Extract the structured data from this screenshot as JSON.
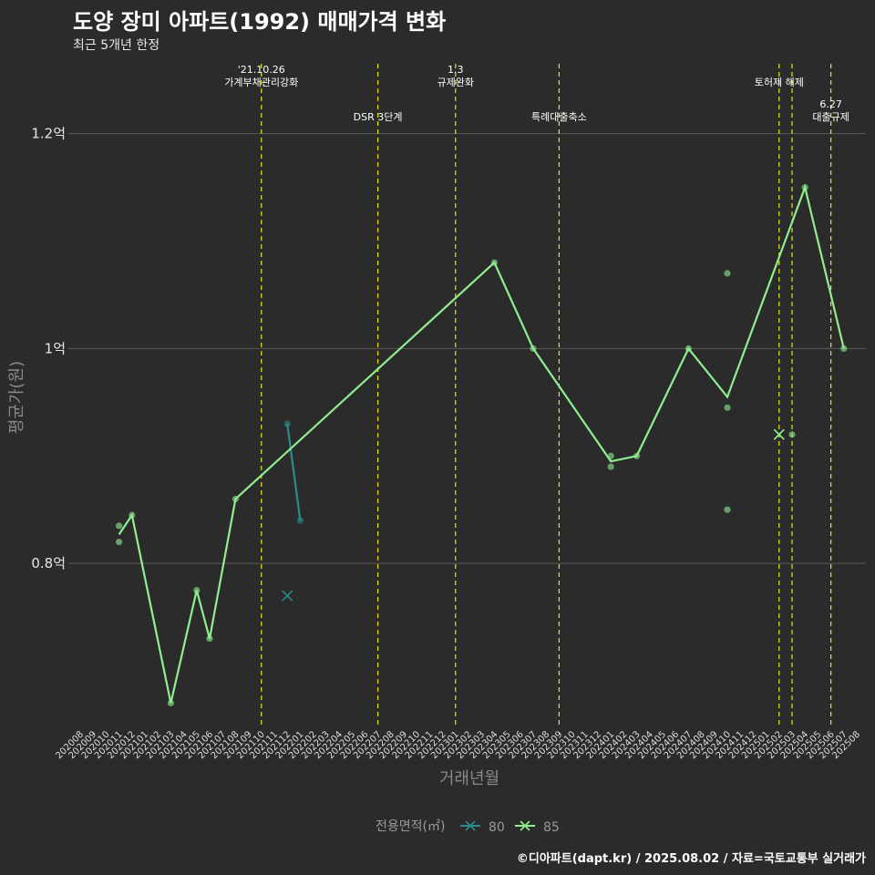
{
  "header": {
    "title": "도양 장미 아파트(1992) 매매가격 변화",
    "subtitle": "최근 5개년 한정"
  },
  "caption": "©디아파트(dapt.kr) / 2025.08.02 / 자료=국토교통부 실거래가",
  "colors": {
    "s80": "#2a8c8c",
    "s85": "#90ee90",
    "policy": "#e6e619",
    "background": "#2b2b2b"
  },
  "chart_data": {
    "type": "line",
    "xlabel": "거래년월",
    "ylabel": "평균가(원)",
    "x_categories": [
      "202008",
      "202009",
      "202010",
      "202011",
      "202012",
      "202101",
      "202102",
      "202103",
      "202104",
      "202105",
      "202106",
      "202107",
      "202108",
      "202109",
      "202110",
      "202111",
      "202112",
      "202201",
      "202202",
      "202203",
      "202204",
      "202205",
      "202206",
      "202207",
      "202208",
      "202209",
      "202210",
      "202211",
      "202212",
      "202301",
      "202302",
      "202303",
      "202304",
      "202305",
      "202306",
      "202307",
      "202308",
      "202309",
      "202310",
      "202311",
      "202312",
      "202401",
      "202402",
      "202403",
      "202404",
      "202405",
      "202406",
      "202407",
      "202408",
      "202409",
      "202410",
      "202411",
      "202412",
      "202501",
      "202502",
      "202503",
      "202504",
      "202505",
      "202506",
      "202507",
      "202508"
    ],
    "y_ticks": [
      {
        "value": 0.8,
        "label": "0.8억"
      },
      {
        "value": 1.0,
        "label": "1억"
      },
      {
        "value": 1.2,
        "label": "1.2억"
      }
    ],
    "ylim": [
      0.65,
      1.265
    ],
    "grid": true,
    "legend": {
      "title": "전용면적(㎡)",
      "position": "bottom",
      "items": [
        {
          "label": "80",
          "color": "#2a8c8c"
        },
        {
          "label": "85",
          "color": "#90ee90"
        }
      ]
    },
    "series": [
      {
        "name": "80",
        "color": "#2a8c8c",
        "line": [
          {
            "x": "202112",
            "y": 0.93
          },
          {
            "x": "202201",
            "y": 0.84
          }
        ],
        "points": [
          {
            "x": "202112",
            "y": 0.93
          },
          {
            "x": "202201",
            "y": 0.84
          }
        ],
        "cross_points": [
          {
            "x": "202112",
            "y": 0.77
          },
          {
            "x": "202502",
            "y": 0.92
          }
        ]
      },
      {
        "name": "85",
        "color": "#90ee90",
        "line": [
          {
            "x": "202011",
            "y": 0.827
          },
          {
            "x": "202012",
            "y": 0.845
          },
          {
            "x": "202103",
            "y": 0.67
          },
          {
            "x": "202105",
            "y": 0.775
          },
          {
            "x": "202106",
            "y": 0.73
          },
          {
            "x": "202108",
            "y": 0.86
          },
          {
            "x": "202304",
            "y": 1.08
          },
          {
            "x": "202307",
            "y": 1.0
          },
          {
            "x": "202401",
            "y": 0.895
          },
          {
            "x": "202403",
            "y": 0.9
          },
          {
            "x": "202407",
            "y": 1.0
          },
          {
            "x": "202410",
            "y": 0.955
          },
          {
            "x": "202504",
            "y": 1.15
          },
          {
            "x": "202507",
            "y": 1.0
          }
        ],
        "points": [
          {
            "x": "202011",
            "y": 0.835
          },
          {
            "x": "202011",
            "y": 0.82
          },
          {
            "x": "202012",
            "y": 0.845
          },
          {
            "x": "202103",
            "y": 0.67
          },
          {
            "x": "202105",
            "y": 0.775
          },
          {
            "x": "202106",
            "y": 0.73
          },
          {
            "x": "202108",
            "y": 0.86
          },
          {
            "x": "202304",
            "y": 1.08
          },
          {
            "x": "202307",
            "y": 1.0
          },
          {
            "x": "202401",
            "y": 0.9
          },
          {
            "x": "202401",
            "y": 0.89
          },
          {
            "x": "202403",
            "y": 0.9
          },
          {
            "x": "202407",
            "y": 1.0
          },
          {
            "x": "202410",
            "y": 1.07
          },
          {
            "x": "202410",
            "y": 0.945
          },
          {
            "x": "202410",
            "y": 0.85
          },
          {
            "x": "202503",
            "y": 0.92
          },
          {
            "x": "202504",
            "y": 1.15
          },
          {
            "x": "202507",
            "y": 1.0
          }
        ],
        "cross_points": [
          {
            "x": "202502",
            "y": 0.92
          }
        ]
      }
    ],
    "policy_lines": [
      {
        "x": "202110",
        "label_lines": [
          "'21.10.26",
          "가계부채관리강화"
        ],
        "row": 1
      },
      {
        "x": "202207",
        "label_lines": [
          "DSR 3단계"
        ],
        "row": 2
      },
      {
        "x": "202301",
        "label_lines": [
          "1.3",
          "규제완화"
        ],
        "row": 1
      },
      {
        "x": "202309",
        "label_lines": [
          "특례대출축소"
        ],
        "row": 2
      },
      {
        "x": "202502",
        "label_lines": [
          "토허제 해제"
        ],
        "row": 1
      },
      {
        "x": "202503",
        "label_lines": [],
        "row": 1
      },
      {
        "x": "202506",
        "label_lines": [
          "6.27",
          "대출규제"
        ],
        "row": 2
      }
    ]
  }
}
